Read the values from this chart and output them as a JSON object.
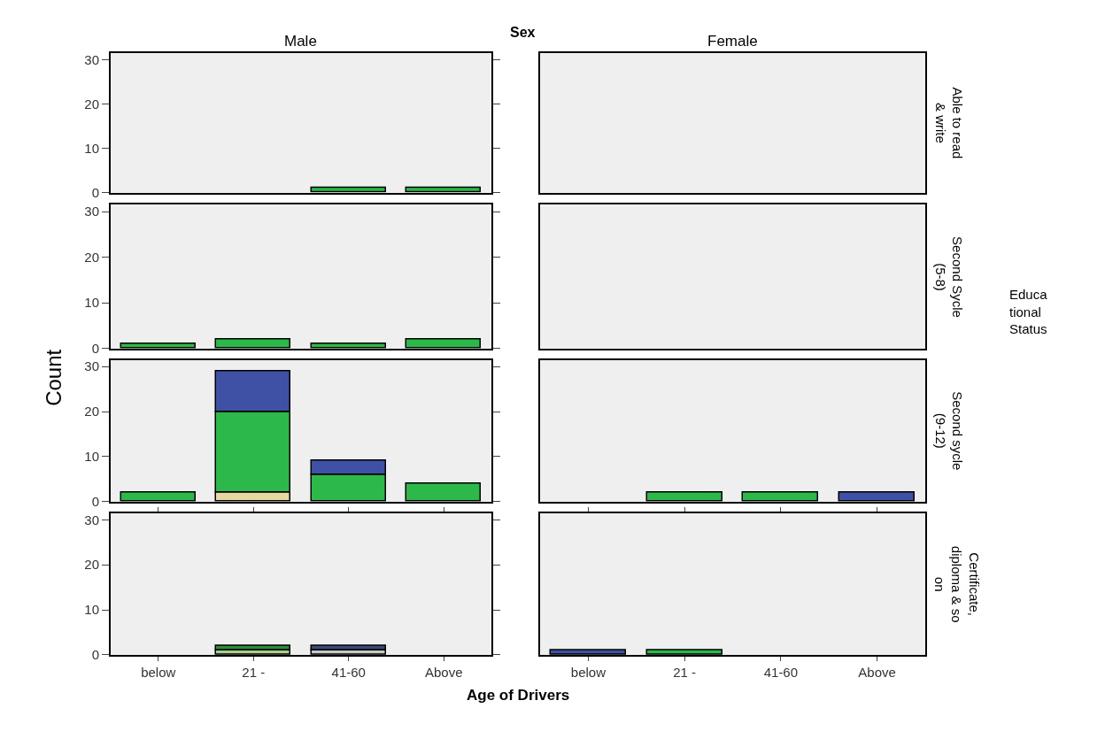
{
  "chart_data": [
    {
      "type": "bar",
      "stacked": true,
      "title": "Male",
      "categories": [
        "below",
        "21 -",
        "41-60",
        "Above"
      ],
      "ylim": [
        0,
        31.5
      ],
      "yticks": [
        0,
        10,
        20,
        30
      ],
      "tick_labels": "y",
      "annotations": [
        "Sex",
        "Age of Drivers",
        "Educa\ntional\nStatus"
      ],
      "series": [
        {
          "color": "#2db84a",
          "values": [
            null,
            null,
            1,
            1
          ]
        }
      ]
    },
    {
      "type": "bar",
      "title": "Female",
      "categories": [
        "below",
        "21 -",
        "41-60",
        "Above"
      ],
      "ylim": [
        0,
        31.5
      ],
      "yticks": [
        0,
        10,
        20,
        30
      ],
      "tick_labels": false,
      "annotations": [
        "Able to read\n& write"
      ]
    },
    {
      "type": "bar",
      "stacked": true,
      "categories": [
        "below",
        "21 -",
        "41-60",
        "Above"
      ],
      "ylim": [
        0,
        31.5
      ],
      "yticks": [
        0,
        10,
        20,
        30
      ],
      "tick_labels": "y",
      "series": [
        {
          "color": "#2db84a",
          "values": [
            1,
            2,
            1,
            2
          ]
        }
      ]
    },
    {
      "type": "bar",
      "categories": [
        "below",
        "21 -",
        "41-60",
        "Above"
      ],
      "ylim": [
        0,
        31.5
      ],
      "yticks": [
        0,
        10,
        20,
        30
      ],
      "tick_labels": false,
      "annotations": [
        "Second Sycle\n(5-8)"
      ]
    },
    {
      "type": "bar",
      "stacked": true,
      "categories": [
        "below",
        "21 -",
        "41-60",
        "Above"
      ],
      "ylim": [
        0,
        31.5
      ],
      "yticks": [
        0,
        10,
        20,
        30
      ],
      "tick_labels": "y",
      "ylabel": "Count",
      "series": [
        {
          "color": "#e6d8a0",
          "values": [
            null,
            2,
            null,
            null
          ]
        },
        {
          "color": "#2db84a",
          "values": [
            2,
            18,
            6,
            4
          ]
        },
        {
          "color": "#3f51a5",
          "values": [
            null,
            9,
            3,
            null
          ]
        }
      ]
    },
    {
      "type": "bar",
      "stacked": true,
      "categories": [
        "below",
        "21 -",
        "41-60",
        "Above"
      ],
      "ylim": [
        0,
        31.5
      ],
      "yticks": [
        0,
        10,
        20,
        30
      ],
      "tick_labels": false,
      "annotations": [
        "Second sycle\n(9-12)"
      ],
      "series": [
        {
          "color": "#2db84a",
          "values": [
            null,
            2,
            2,
            null
          ]
        },
        {
          "color": "#3f51a5",
          "values": [
            null,
            null,
            null,
            2
          ]
        }
      ]
    },
    {
      "type": "bar",
      "stacked": true,
      "categories": [
        "below",
        "21 -",
        "41-60",
        "Above"
      ],
      "ylim": [
        0,
        31.5
      ],
      "yticks": [
        0,
        10,
        20,
        30
      ],
      "series": [
        {
          "color": "#a8d08d",
          "values": [
            null,
            1,
            null,
            null
          ]
        },
        {
          "color": "#c8c8c8",
          "values": [
            null,
            null,
            1,
            null
          ]
        },
        {
          "color": "#2e8b3e",
          "values": [
            null,
            1,
            null,
            null
          ]
        },
        {
          "color": "#3d4a7a",
          "values": [
            null,
            null,
            1,
            null
          ]
        }
      ]
    },
    {
      "type": "bar",
      "stacked": true,
      "categories": [
        "below",
        "21 -",
        "41-60",
        "Above"
      ],
      "ylim": [
        0,
        31.5
      ],
      "yticks": [
        0,
        10,
        20,
        30
      ],
      "tick_labels": "x",
      "annotations": [
        "Certificate,\ndiploma & so\non"
      ],
      "series": [
        {
          "color": "#3f51a5",
          "values": [
            1,
            null,
            null,
            null
          ]
        },
        {
          "color": "#2db84a",
          "values": [
            null,
            1,
            null,
            null
          ]
        }
      ]
    }
  ]
}
